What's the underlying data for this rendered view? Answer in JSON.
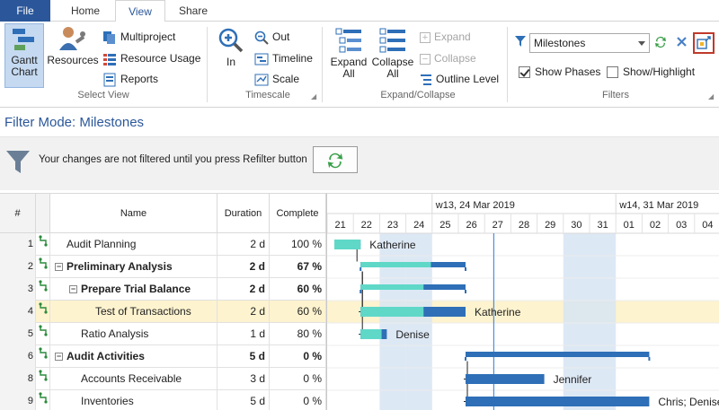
{
  "tabs": [
    "File",
    "Home",
    "View",
    "Share"
  ],
  "ribbon": {
    "select_view": {
      "gantt_chart": "Gantt\nChart",
      "resources": "Resources",
      "multiproject": "Multiproject",
      "resource_usage": "Resource Usage",
      "reports": "Reports",
      "group_label": "Select View"
    },
    "timescale": {
      "in": "In",
      "out": "Out",
      "timeline": "Timeline",
      "scale": "Scale",
      "group_label": "Timescale"
    },
    "expand": {
      "expand_all": "Expand\nAll",
      "collapse_all": "Collapse\nAll",
      "expand": "Expand",
      "collapse": "Collapse",
      "outline_level": "Outline Level",
      "group_label": "Expand/Collapse"
    },
    "filters": {
      "selected": "Milestones",
      "show_phases": "Show Phases",
      "show_phases_checked": true,
      "show_highlight": "Show/Highlight",
      "show_highlight_checked": false,
      "group_label": "Filters"
    }
  },
  "filter_mode": "Filter Mode: Milestones",
  "notice": "Your changes are not filtered until you press Refilter button",
  "grid": {
    "headers": {
      "id": "#",
      "name": "Name",
      "duration": "Duration",
      "complete": "Complete"
    },
    "rows": [
      {
        "id": "1",
        "name": "Audit Planning",
        "duration": "2 d",
        "complete": "100 %",
        "bold": false,
        "toggle": "",
        "indent": 0,
        "selected": false
      },
      {
        "id": "2",
        "name": "Preliminary Analysis",
        "duration": "2 d",
        "complete": "67 %",
        "bold": true,
        "toggle": "−",
        "indent": 0,
        "selected": false
      },
      {
        "id": "3",
        "name": "Prepare Trial Balance",
        "duration": "2 d",
        "complete": "60 %",
        "bold": true,
        "toggle": "−",
        "indent": 1,
        "selected": false
      },
      {
        "id": "4",
        "name": "Test of Transactions",
        "duration": "2 d",
        "complete": "60 %",
        "bold": false,
        "toggle": "",
        "indent": 2,
        "selected": true
      },
      {
        "id": "5",
        "name": "Ratio Analysis",
        "duration": "1 d",
        "complete": "80 %",
        "bold": false,
        "toggle": "",
        "indent": 1,
        "selected": false
      },
      {
        "id": "6",
        "name": "Audit Activities",
        "duration": "5 d",
        "complete": "0 %",
        "bold": true,
        "toggle": "−",
        "indent": 0,
        "selected": false
      },
      {
        "id": "8",
        "name": "Accounts Receivable",
        "duration": "3 d",
        "complete": "0 %",
        "bold": false,
        "toggle": "",
        "indent": 1,
        "selected": false
      },
      {
        "id": "9",
        "name": "Inventories",
        "duration": "5 d",
        "complete": "0 %",
        "bold": false,
        "toggle": "",
        "indent": 1,
        "selected": false
      }
    ]
  },
  "gantt": {
    "weeks": [
      "w13, 24 Mar 2019",
      "w14, 31 Mar 2019"
    ],
    "days": [
      "21",
      "22",
      "23",
      "24",
      "25",
      "26",
      "27",
      "28",
      "29",
      "30",
      "31",
      "01",
      "02",
      "03",
      "04"
    ],
    "weekend_days": [
      "23",
      "24",
      "30",
      "31"
    ],
    "today": "27",
    "colors": {
      "progress": "#5fd8c8",
      "bar": "#2e6fb7",
      "summary": "#2e6fb7",
      "weekend": "#d7e4f3",
      "today": "#4a90e2",
      "selected_row": "#fdf3cf"
    },
    "tasks": [
      {
        "row": 0,
        "kind": "task",
        "start": "21",
        "days": 1,
        "complete": 1.0,
        "label": "Katherine"
      },
      {
        "row": 1,
        "kind": "summary",
        "start": "22",
        "days": 4,
        "complete": 0.67,
        "label": ""
      },
      {
        "row": 2,
        "kind": "summary",
        "start": "22",
        "days": 4,
        "complete": 0.6,
        "label": ""
      },
      {
        "row": 3,
        "kind": "task",
        "start": "22",
        "days": 4,
        "complete": 0.6,
        "label": "Katherine"
      },
      {
        "row": 4,
        "kind": "task",
        "start": "22",
        "days": 1,
        "complete": 0.8,
        "label": "Denise"
      },
      {
        "row": 5,
        "kind": "summary",
        "start": "26",
        "days": 7,
        "complete": 0.0,
        "label": ""
      },
      {
        "row": 6,
        "kind": "task",
        "start": "26",
        "days": 3,
        "complete": 0.0,
        "label": "Jennifer"
      },
      {
        "row": 7,
        "kind": "task",
        "start": "26",
        "days": 7,
        "complete": 0.0,
        "label": "Chris; Denise"
      }
    ],
    "links": [
      {
        "from": 0,
        "to": 1
      },
      {
        "from": 1,
        "to": 3
      },
      {
        "from": 1,
        "to": 4
      },
      {
        "from": 5,
        "to": 6
      },
      {
        "from": 5,
        "to": 7
      }
    ]
  }
}
